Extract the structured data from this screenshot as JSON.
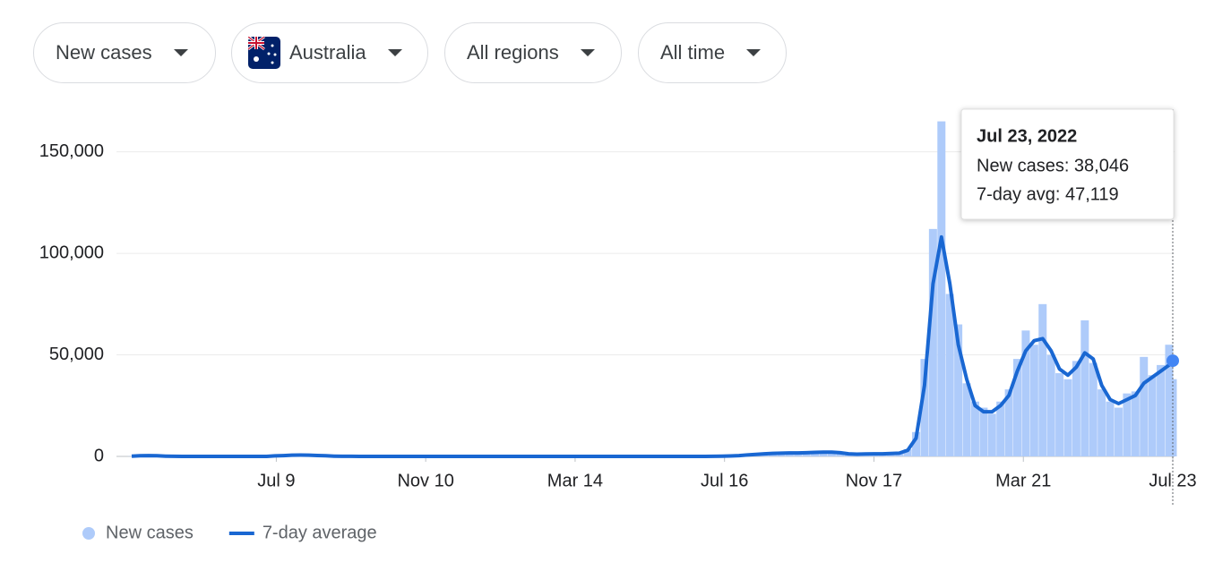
{
  "controls": [
    "New cases",
    "Australia",
    "All regions",
    "All time"
  ],
  "chart_data": {
    "type": "combo",
    "x": [
      0,
      7,
      14,
      21,
      28,
      35,
      42,
      49,
      56,
      63,
      70,
      77,
      84,
      91,
      98,
      105,
      112,
      119,
      126,
      133,
      140,
      147,
      154,
      161,
      168,
      175,
      182,
      189,
      196,
      203,
      210,
      217,
      224,
      231,
      238,
      245,
      252,
      259,
      266,
      273,
      280,
      287,
      294,
      301,
      308,
      315,
      322,
      329,
      336,
      343,
      350,
      357,
      364,
      371,
      378,
      385,
      392,
      399,
      406,
      413,
      420,
      427,
      434,
      441,
      448,
      455,
      462,
      469,
      476,
      483,
      490,
      497,
      504,
      511,
      518,
      525,
      532,
      539,
      546,
      553,
      560,
      567,
      574,
      581,
      588,
      595,
      602,
      609,
      616,
      623,
      630,
      637,
      644,
      651,
      658,
      665,
      672,
      679,
      686,
      693,
      700,
      707,
      714,
      721,
      728,
      735,
      742,
      749,
      756,
      763,
      770,
      777,
      784,
      791,
      798,
      805,
      812,
      819,
      826,
      833,
      840,
      847,
      854,
      861,
      864
    ],
    "xlim": [
      0,
      864
    ],
    "xticks": [
      {
        "value": 120,
        "label": "Jul 9"
      },
      {
        "value": 244,
        "label": "Nov 10"
      },
      {
        "value": 368,
        "label": "Mar 14"
      },
      {
        "value": 492,
        "label": "Jul 16"
      },
      {
        "value": 616,
        "label": "Nov 17"
      },
      {
        "value": 740,
        "label": "Mar 21"
      },
      {
        "value": 864,
        "label": "Jul 23"
      }
    ],
    "ylim": [
      0,
      171000
    ],
    "yticks": [
      0,
      {
        "value": 50000,
        "label": "50,000"
      },
      {
        "value": 100000,
        "label": "100,000"
      },
      {
        "value": 150000,
        "label": "150,000"
      }
    ],
    "grid": true,
    "series": [
      {
        "name": "New cases",
        "type": "bar",
        "color": "#aecbfa",
        "values": [
          100,
          300,
          400,
          300,
          150,
          40,
          20,
          15,
          15,
          15,
          15,
          15,
          15,
          15,
          15,
          15,
          15,
          250,
          400,
          600,
          680,
          620,
          450,
          300,
          150,
          60,
          25,
          12,
          12,
          12,
          12,
          12,
          12,
          12,
          12,
          12,
          12,
          12,
          12,
          12,
          12,
          12,
          12,
          12,
          12,
          12,
          12,
          12,
          12,
          12,
          12,
          12,
          12,
          12,
          12,
          12,
          12,
          12,
          12,
          12,
          12,
          12,
          12,
          12,
          12,
          12,
          12,
          12,
          15,
          60,
          120,
          200,
          400,
          700,
          1000,
          1300,
          1500,
          1600,
          1700,
          1700,
          1800,
          2000,
          2100,
          2100,
          1800,
          1300,
          1100,
          1200,
          1300,
          1300,
          1400,
          1600,
          3500,
          12000,
          48000,
          112000,
          165000,
          80000,
          65000,
          36000,
          27000,
          24000,
          21000,
          27000,
          33000,
          48000,
          62000,
          55000,
          75000,
          50000,
          41000,
          38000,
          47000,
          67000,
          46000,
          33000,
          27000,
          24000,
          31000,
          32000,
          49000,
          40000,
          45000,
          55000,
          38046
        ]
      },
      {
        "name": "7-day average",
        "type": "line",
        "color": "#1967d2",
        "values": [
          100,
          300,
          400,
          300,
          150,
          40,
          20,
          15,
          15,
          15,
          15,
          15,
          15,
          15,
          15,
          15,
          15,
          250,
          400,
          600,
          680,
          620,
          450,
          300,
          150,
          60,
          25,
          12,
          12,
          12,
          12,
          12,
          12,
          12,
          12,
          12,
          12,
          12,
          12,
          12,
          12,
          12,
          12,
          12,
          12,
          12,
          12,
          12,
          12,
          12,
          12,
          12,
          12,
          12,
          12,
          12,
          12,
          12,
          12,
          12,
          12,
          12,
          12,
          12,
          12,
          12,
          12,
          12,
          15,
          60,
          120,
          200,
          400,
          700,
          1000,
          1300,
          1500,
          1600,
          1700,
          1700,
          1800,
          2000,
          2100,
          2100,
          1800,
          1300,
          1100,
          1200,
          1300,
          1300,
          1400,
          1600,
          3000,
          9000,
          35000,
          85000,
          108000,
          85000,
          55000,
          38000,
          25000,
          22000,
          22000,
          25000,
          30000,
          42000,
          52000,
          57000,
          58000,
          52000,
          43000,
          40000,
          44000,
          51000,
          48000,
          35000,
          28000,
          26000,
          28000,
          30000,
          36000,
          39000,
          42000,
          45000,
          47119
        ]
      }
    ],
    "tooltip": {
      "title": "Jul 23, 2022",
      "lines": [
        "New cases: 38,046",
        "7-day avg: 47,119"
      ]
    }
  }
}
